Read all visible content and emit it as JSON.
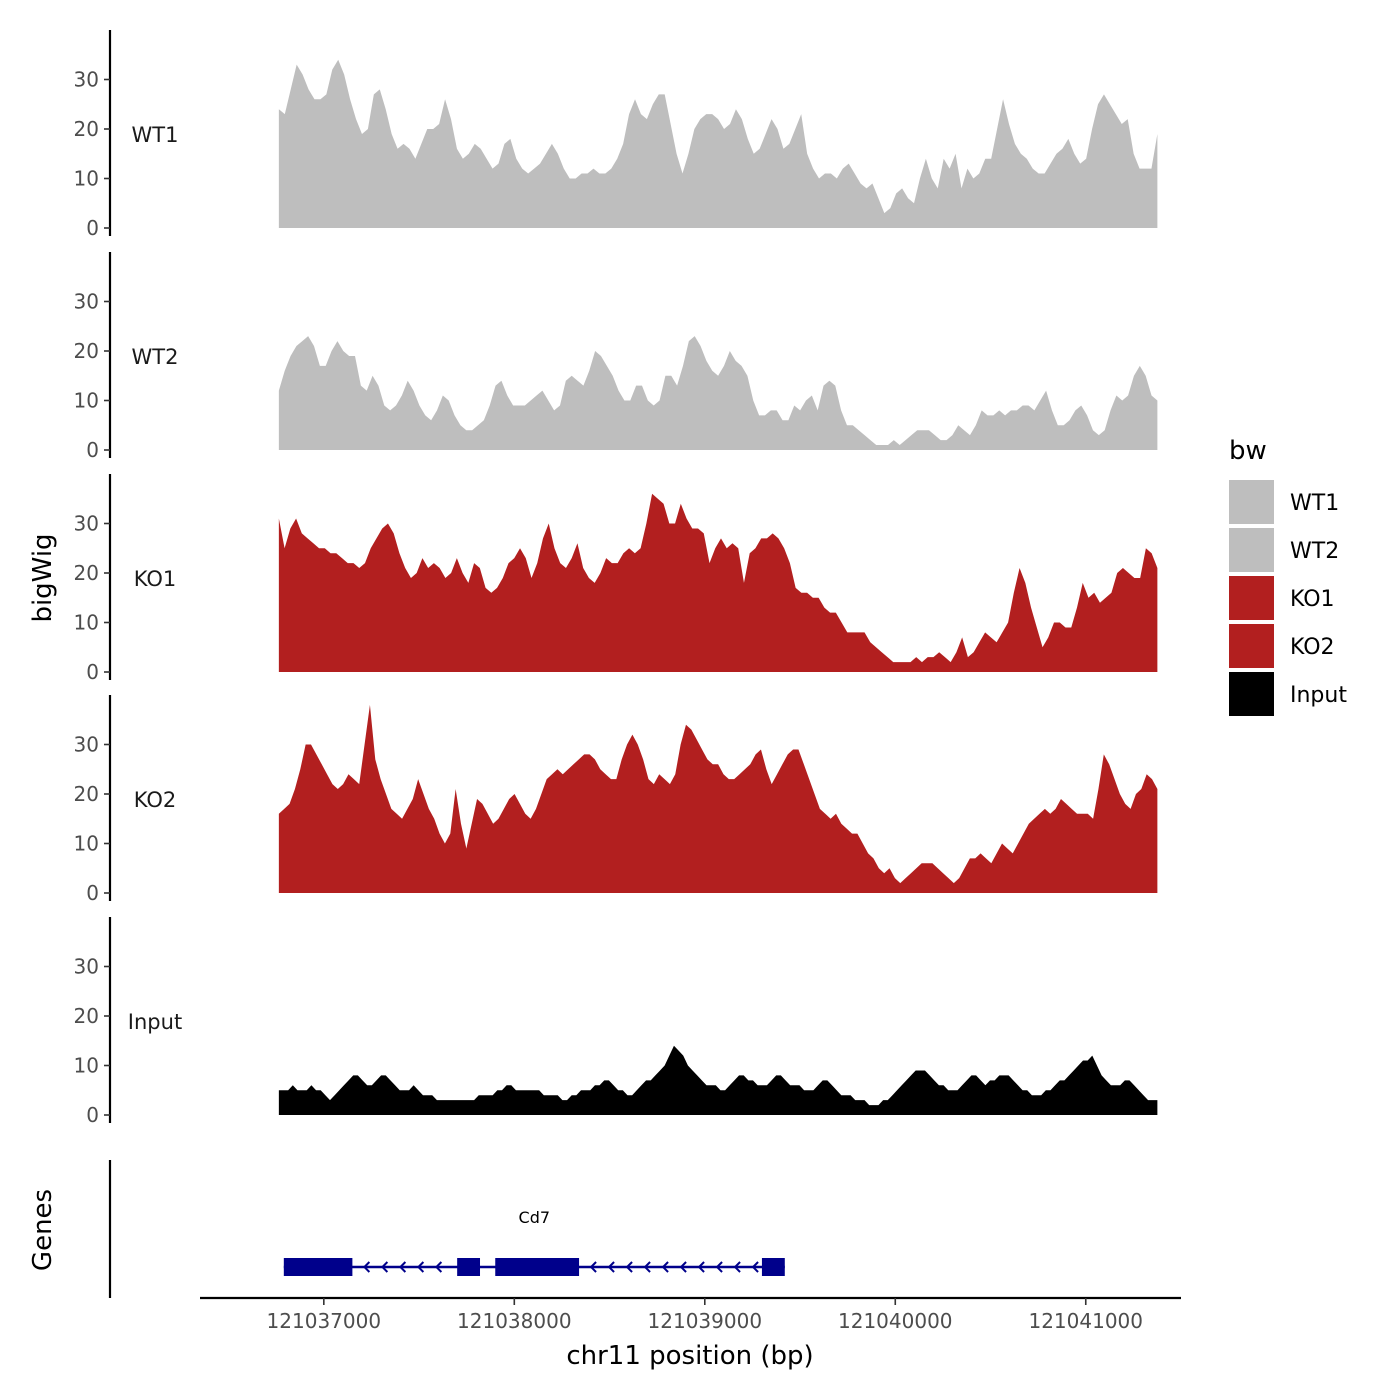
{
  "chart_data": {
    "type": "area",
    "xlabel": "chr11 position (bp)",
    "ylabel": "bigWig",
    "genes_label": "Genes",
    "x_range": [
      121036764,
      121041376
    ],
    "xlim": [
      121036350,
      121041500
    ],
    "ylim": [
      0,
      40
    ],
    "y_ticks": [
      0,
      10,
      20,
      30
    ],
    "x_ticks": [
      121037000,
      121038000,
      121039000,
      121040000,
      121041000
    ],
    "x_tick_labels": [
      "121037000",
      "121038000",
      "121039000",
      "121040000",
      "121041000"
    ],
    "grid": false,
    "legend": {
      "title": "bw",
      "position": "right",
      "entries": [
        {
          "label": "WT1",
          "color": "#bebebe"
        },
        {
          "label": "WT2",
          "color": "#bebebe"
        },
        {
          "label": "KO1",
          "color": "#b21f1f"
        },
        {
          "label": "KO2",
          "color": "#b21f1f"
        },
        {
          "label": "Input",
          "color": "#000000"
        }
      ]
    },
    "series": [
      {
        "name": "WT1",
        "color": "#bebebe",
        "values": [
          24,
          23,
          28,
          33,
          31,
          28,
          26,
          26,
          27,
          32,
          34,
          31,
          26,
          22,
          19,
          20,
          27,
          28,
          24,
          19,
          16,
          17,
          16,
          14,
          17,
          20,
          20,
          21,
          26,
          22,
          16,
          14,
          15,
          17,
          16,
          14,
          12,
          13,
          17,
          18,
          14,
          12,
          11,
          12,
          13,
          15,
          17,
          15,
          12,
          10,
          10,
          11,
          11,
          12,
          11,
          11,
          12,
          14,
          17,
          23,
          26,
          23,
          22,
          25,
          27,
          27,
          21,
          15,
          11,
          15,
          20,
          22,
          23,
          23,
          22,
          20,
          21,
          24,
          22,
          18,
          15,
          16,
          19,
          22,
          20,
          16,
          17,
          20,
          23,
          15,
          12,
          10,
          11,
          11,
          10,
          12,
          13,
          11,
          9,
          8,
          9,
          6,
          3,
          4,
          7,
          8,
          6,
          5,
          10,
          14,
          10,
          8,
          14,
          12,
          15,
          8,
          12,
          10,
          11,
          14,
          14,
          20,
          26,
          21,
          17,
          15,
          14,
          12,
          11,
          11,
          13,
          15,
          16,
          18,
          15,
          13,
          14,
          20,
          25,
          27,
          25,
          23,
          21,
          22,
          15,
          12,
          12,
          12,
          19
        ]
      },
      {
        "name": "WT2",
        "color": "#bebebe",
        "values": [
          12,
          16,
          19,
          21,
          22,
          23,
          21,
          17,
          17,
          20,
          22,
          20,
          19,
          19,
          13,
          12,
          15,
          13,
          9,
          8,
          9,
          11,
          14,
          12,
          9,
          7,
          6,
          8,
          11,
          10,
          7,
          5,
          4,
          4,
          5,
          6,
          9,
          13,
          14,
          11,
          9,
          9,
          9,
          10,
          11,
          12,
          10,
          8,
          9,
          14,
          15,
          14,
          13,
          16,
          20,
          19,
          17,
          15,
          12,
          10,
          10,
          13,
          13,
          10,
          9,
          10,
          15,
          15,
          13,
          17,
          22,
          23,
          21,
          18,
          16,
          15,
          17,
          20,
          18,
          17,
          15,
          10,
          7,
          7,
          8,
          8,
          6,
          6,
          9,
          8,
          10,
          11,
          8,
          13,
          14,
          13,
          8,
          5,
          5,
          4,
          3,
          2,
          1,
          1,
          1,
          2,
          1,
          2,
          3,
          4,
          4,
          4,
          3,
          2,
          2,
          3,
          5,
          4,
          3,
          5,
          8,
          7,
          7,
          8,
          7,
          8,
          8,
          9,
          9,
          8,
          10,
          12,
          8,
          5,
          5,
          6,
          8,
          9,
          7,
          4,
          3,
          4,
          8,
          11,
          10,
          11,
          15,
          17,
          15,
          11,
          10
        ]
      },
      {
        "name": "KO1",
        "color": "#b21f1f",
        "values": [
          31,
          25,
          29,
          31,
          28,
          27,
          26,
          25,
          25,
          24,
          24,
          23,
          22,
          22,
          21,
          22,
          25,
          27,
          29,
          30,
          28,
          24,
          21,
          19,
          20,
          23,
          21,
          22,
          21,
          19,
          20,
          23,
          20,
          18,
          22,
          21,
          17,
          16,
          17,
          19,
          22,
          23,
          25,
          23,
          19,
          22,
          27,
          30,
          25,
          22,
          21,
          23,
          26,
          21,
          19,
          18,
          20,
          23,
          22,
          22,
          24,
          25,
          24,
          25,
          30,
          36,
          35,
          34,
          30,
          30,
          34,
          31,
          29,
          29,
          28,
          22,
          25,
          27,
          25,
          26,
          25,
          18,
          24,
          25,
          27,
          27,
          28,
          27,
          25,
          22,
          17,
          16,
          16,
          15,
          15,
          13,
          12,
          12,
          10,
          8,
          8,
          8,
          8,
          6,
          5,
          4,
          3,
          2,
          2,
          2,
          2,
          3,
          2,
          3,
          3,
          4,
          3,
          2,
          4,
          7,
          3,
          4,
          6,
          8,
          7,
          6,
          8,
          10,
          16,
          21,
          18,
          13,
          9,
          5,
          7,
          10,
          10,
          9,
          9,
          13,
          18,
          15,
          16,
          14,
          15,
          16,
          20,
          21,
          20,
          19,
          19,
          25,
          24,
          21
        ]
      },
      {
        "name": "KO2",
        "color": "#b21f1f",
        "values": [
          16,
          17,
          18,
          21,
          25,
          30,
          30,
          28,
          26,
          24,
          22,
          21,
          22,
          24,
          23,
          22,
          30,
          38,
          27,
          23,
          20,
          17,
          16,
          15,
          17,
          19,
          23,
          20,
          17,
          15,
          12,
          10,
          12,
          21,
          14,
          9,
          14,
          19,
          18,
          16,
          14,
          15,
          17,
          19,
          20,
          18,
          16,
          15,
          17,
          20,
          23,
          24,
          25,
          24,
          25,
          26,
          27,
          28,
          28,
          27,
          25,
          24,
          23,
          23,
          27,
          30,
          32,
          30,
          27,
          23,
          22,
          24,
          23,
          22,
          24,
          30,
          34,
          33,
          31,
          29,
          27,
          26,
          26,
          24,
          23,
          23,
          24,
          25,
          26,
          28,
          29,
          25,
          22,
          24,
          26,
          28,
          29,
          29,
          26,
          23,
          20,
          17,
          16,
          15,
          16,
          14,
          13,
          12,
          12,
          10,
          8,
          7,
          5,
          4,
          5,
          3,
          2,
          3,
          4,
          5,
          6,
          6,
          6,
          5,
          4,
          3,
          2,
          3,
          5,
          7,
          7,
          8,
          7,
          6,
          8,
          10,
          9,
          8,
          10,
          12,
          14,
          15,
          16,
          17,
          16,
          17,
          19,
          18,
          17,
          16,
          16,
          16,
          15,
          21,
          28,
          26,
          23,
          20,
          18,
          17,
          20,
          21,
          24,
          23,
          21
        ]
      },
      {
        "name": "Input",
        "color": "#000000",
        "values": [
          5,
          5,
          5,
          6,
          5,
          5,
          5,
          6,
          5,
          5,
          4,
          3,
          4,
          5,
          6,
          7,
          8,
          8,
          7,
          6,
          6,
          7,
          8,
          8,
          7,
          6,
          5,
          5,
          5,
          6,
          5,
          4,
          4,
          4,
          3,
          3,
          3,
          3,
          3,
          3,
          3,
          3,
          3,
          4,
          4,
          4,
          4,
          5,
          5,
          6,
          6,
          5,
          5,
          5,
          5,
          5,
          5,
          4,
          4,
          4,
          4,
          3,
          3,
          4,
          4,
          5,
          5,
          5,
          6,
          6,
          7,
          7,
          6,
          5,
          5,
          4,
          4,
          5,
          6,
          7,
          7,
          8,
          9,
          10,
          12,
          14,
          13,
          12,
          10,
          9,
          8,
          7,
          6,
          6,
          6,
          5,
          5,
          6,
          7,
          8,
          8,
          7,
          7,
          6,
          6,
          6,
          7,
          8,
          8,
          7,
          6,
          6,
          6,
          5,
          5,
          5,
          6,
          7,
          7,
          6,
          5,
          4,
          4,
          4,
          3,
          3,
          3,
          2,
          2,
          2,
          3,
          3,
          4,
          5,
          6,
          7,
          8,
          9,
          9,
          9,
          8,
          7,
          6,
          6,
          5,
          5,
          5,
          6,
          7,
          8,
          8,
          7,
          6,
          7,
          7,
          8,
          8,
          8,
          7,
          6,
          5,
          5,
          4,
          4,
          4,
          5,
          5,
          6,
          7,
          7,
          8,
          9,
          10,
          11,
          11,
          12,
          10,
          8,
          7,
          6,
          6,
          6,
          7,
          7,
          6,
          5,
          4,
          3,
          3,
          3
        ]
      }
    ],
    "genes": [
      {
        "name": "Cd7",
        "strand": "-",
        "start": 121036790,
        "end": 121039420,
        "exons": [
          [
            121036790,
            121037150
          ],
          [
            121037700,
            121037820
          ],
          [
            121037900,
            121038340
          ],
          [
            121039300,
            121039420
          ]
        ]
      }
    ]
  }
}
